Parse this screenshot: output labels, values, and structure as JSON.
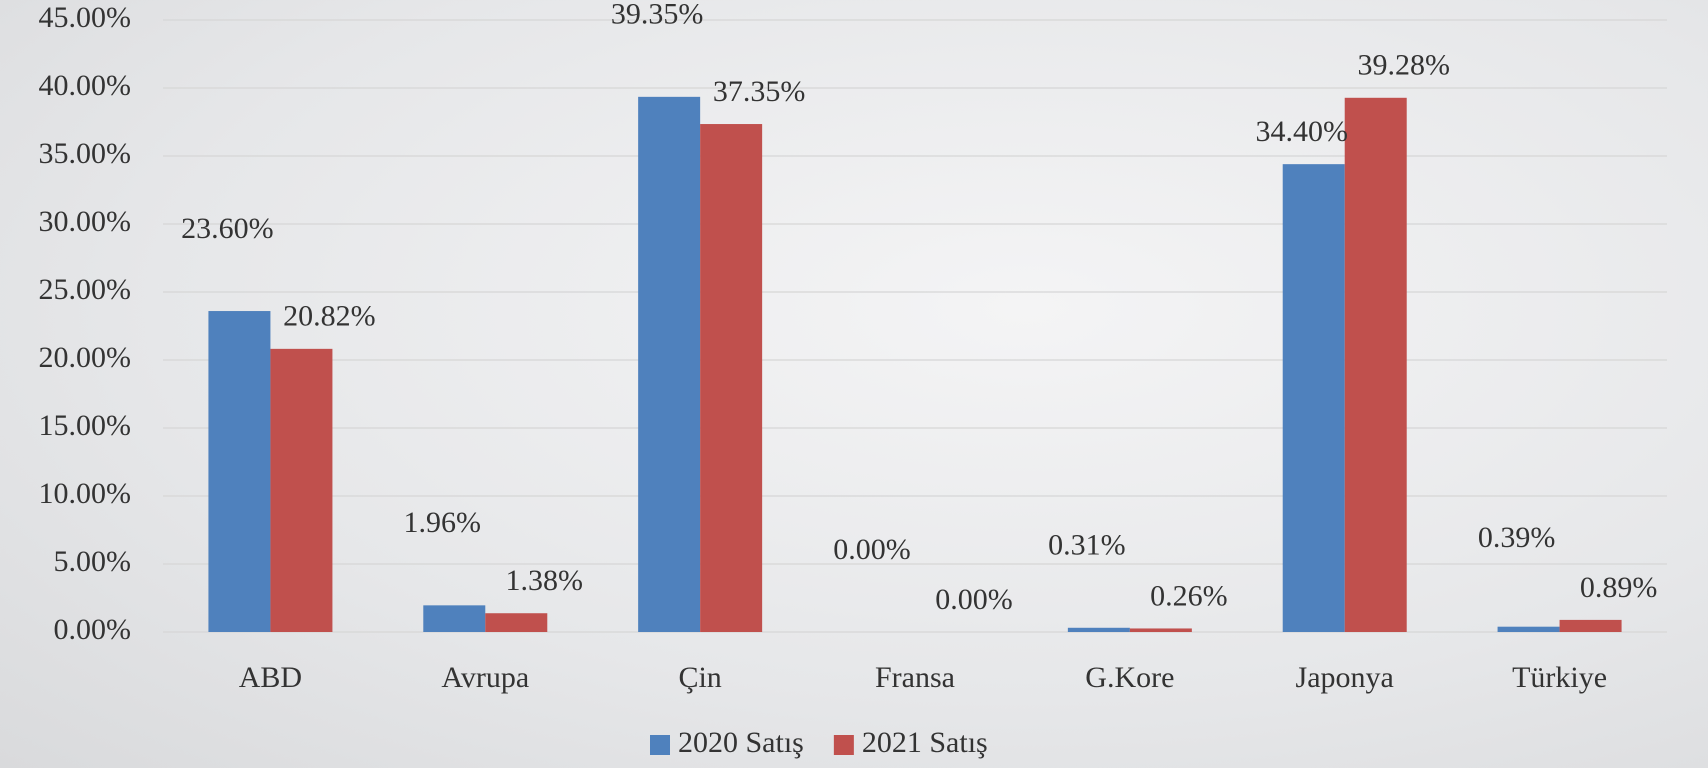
{
  "chart_data": {
    "type": "bar",
    "categories": [
      "ABD",
      "Avrupa",
      "Çin",
      "Fransa",
      "G.Kore",
      "Japonya",
      "Türkiye"
    ],
    "series": [
      {
        "name": "2020 Satış",
        "color": "#4f81bd",
        "values": [
          23.6,
          1.96,
          39.35,
          0.0,
          0.31,
          34.4,
          0.39
        ],
        "value_labels": [
          "23.60%",
          "1.96%",
          "39.35%",
          "0.00%",
          "0.31%",
          "34.40%",
          "0.39%"
        ]
      },
      {
        "name": "2021 Satış",
        "color": "#c0504d",
        "values": [
          20.82,
          1.38,
          37.35,
          0.0,
          0.26,
          39.28,
          0.89
        ],
        "value_labels": [
          "20.82%",
          "1.38%",
          "37.35%",
          "0.00%",
          "0.26%",
          "39.28%",
          "0.89%"
        ]
      }
    ],
    "ylim": [
      0,
      45
    ],
    "yticks": [
      {
        "value": 0,
        "label": "0.00%"
      },
      {
        "value": 5,
        "label": "5.00%"
      },
      {
        "value": 10,
        "label": "10.00%"
      },
      {
        "value": 15,
        "label": "15.00%"
      },
      {
        "value": 20,
        "label": "20.00%"
      },
      {
        "value": 25,
        "label": "25.00%"
      },
      {
        "value": 30,
        "label": "30.00%"
      },
      {
        "value": 35,
        "label": "35.00%"
      },
      {
        "value": 40,
        "label": "40.00%"
      },
      {
        "value": 45,
        "label": "45.00%"
      }
    ],
    "grid": true,
    "legend": "bottom"
  }
}
